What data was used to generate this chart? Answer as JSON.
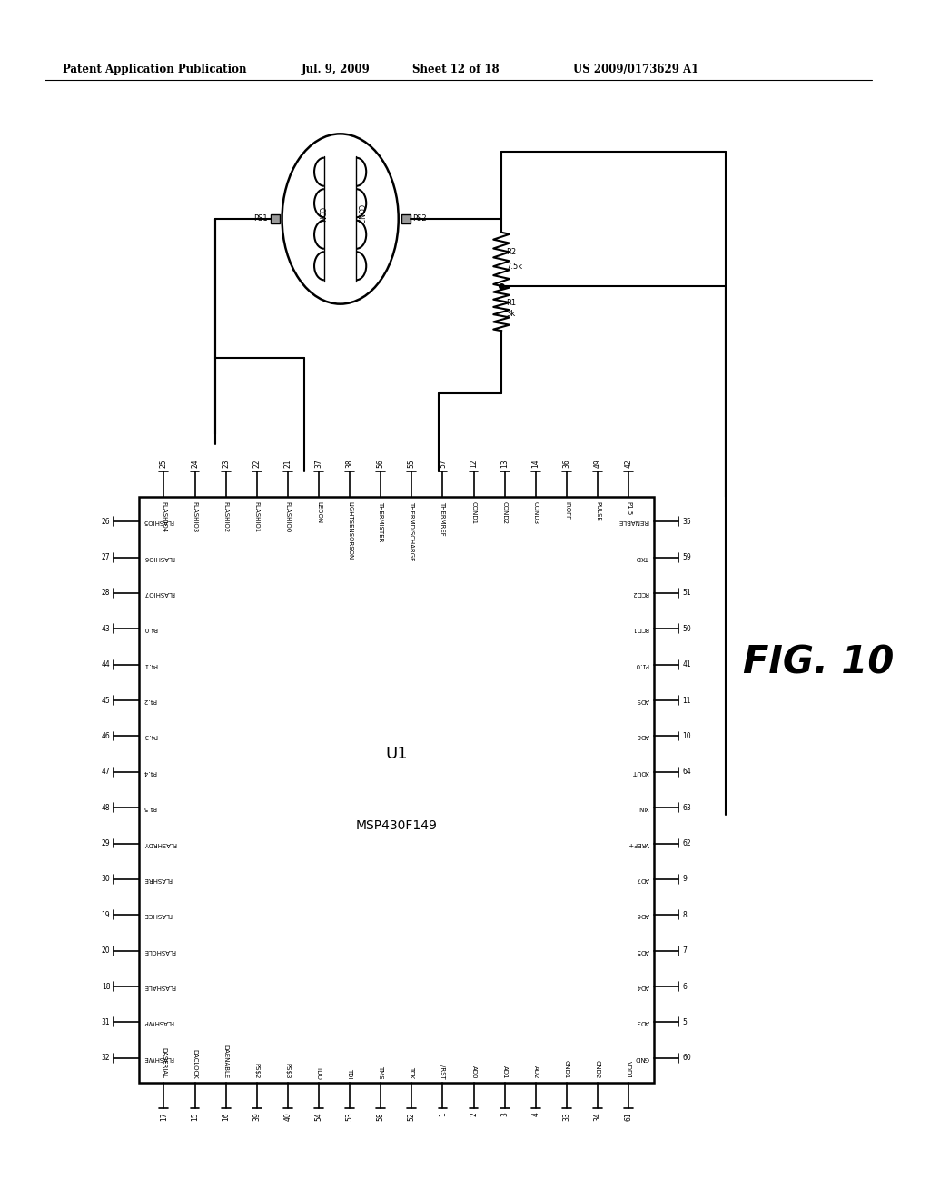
{
  "title": "Patent Application Publication",
  "date": "Jul. 9, 2009",
  "sheet": "Sheet 12 of 18",
  "patent_num": "US 2009/0173629 A1",
  "fig_label": "FIG. 10",
  "chip_label": "U1",
  "chip_model": "MSP430F149",
  "background": "#ffffff",
  "line_color": "#000000",
  "top_pins": [
    "25",
    "24",
    "23",
    "22",
    "21",
    "37",
    "38",
    "56",
    "55",
    "57",
    "12",
    "13",
    "14",
    "36",
    "49",
    "42"
  ],
  "top_signals": [
    "FLASHIO4",
    "FLASHIO3",
    "FLASHIO2",
    "FLASHIO1",
    "FLASHIO0",
    "LEDON",
    "LIGHTSENSORSON",
    "THERMISTER",
    "THERMDISCHARGE",
    "THERMREF",
    "COND1",
    "COND2",
    "COND3",
    "IROFF",
    "PULSE",
    "P1.5"
  ],
  "left_pins": [
    "26",
    "27",
    "28",
    "43",
    "44",
    "45",
    "46",
    "47",
    "48",
    "29",
    "30",
    "19",
    "20",
    "18",
    "31",
    "32"
  ],
  "left_signals": [
    "FLASHIO5",
    "FLASHIO6",
    "FLASHIO7",
    "P4.0",
    "P4.1",
    "P4.2",
    "P4.3",
    "P4.4",
    "P4.5",
    "FLASHRDY",
    "FLASHRE",
    "FLASHCE",
    "FLASHCLE",
    "FLASHALE",
    "FLASHWP",
    "FLASHWE"
  ],
  "bottom_pins": [
    "17",
    "15",
    "16",
    "39",
    "40",
    "54",
    "53",
    "58",
    "52",
    "1",
    "2",
    "3",
    "4",
    "33",
    "34",
    "61"
  ],
  "bottom_signals": [
    "DASERIAL",
    "DACLOCK",
    "DAENABLE",
    "PS$2",
    "PS$3",
    "TDO",
    "TDI",
    "TMS",
    "TCK",
    "/RST",
    "AD0",
    "AD1",
    "AD2",
    "GND1",
    "GND2",
    "VDD1"
  ],
  "right_pins": [
    "35",
    "59",
    "51",
    "50",
    "41",
    "11",
    "10",
    "64",
    "63",
    "62",
    "9",
    "8",
    "7",
    "6",
    "5",
    "60"
  ],
  "right_signals": [
    "IRENABLE",
    "TXD",
    "RCD2",
    "RCD1",
    "P1.0",
    "AD9",
    "AD8",
    "XOUT",
    "XIN",
    "VREF+",
    "AD7",
    "AD6",
    "AD5",
    "AD4",
    "AD3",
    "GND"
  ]
}
